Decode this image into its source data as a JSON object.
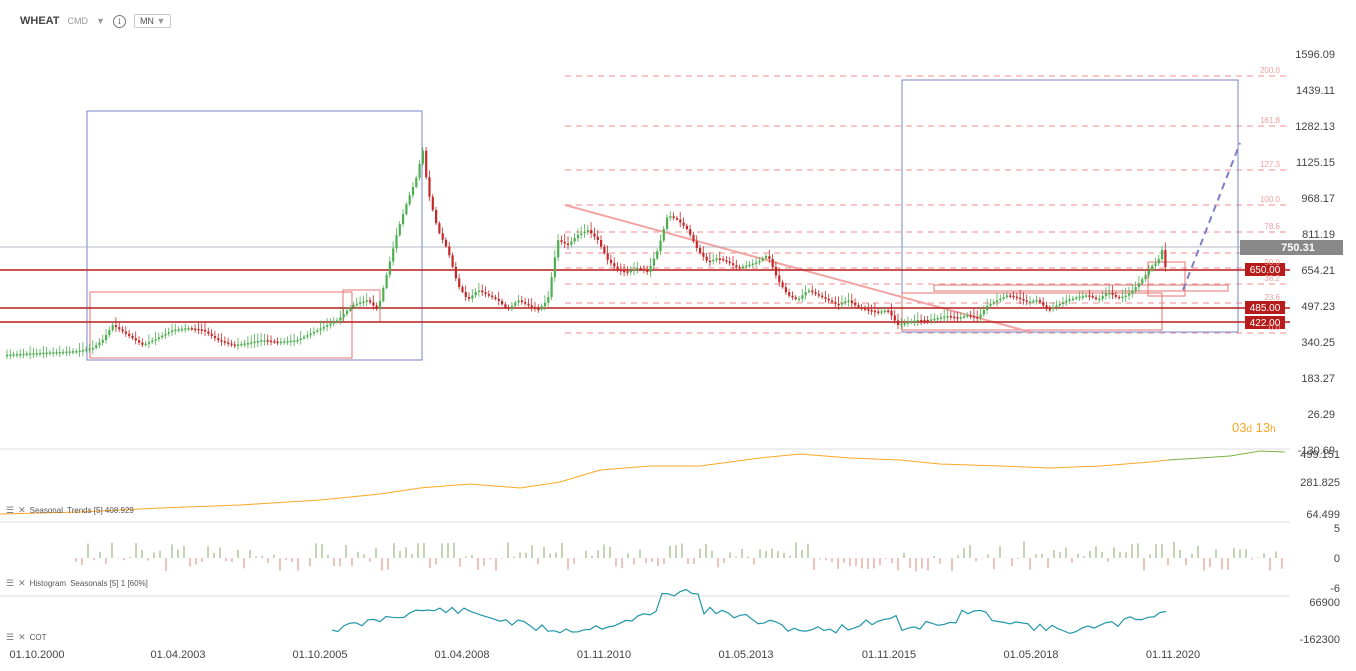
{
  "header": {
    "symbol": "WHEAT",
    "exchange": "CMD",
    "timeframe": "MN"
  },
  "main_axis": {
    "ticks": [
      "1596.09",
      "1439.11",
      "1282.13",
      "1125.15",
      "968.17",
      "811.19",
      "654.21",
      "497.23",
      "340.25",
      "183.27",
      "26.29",
      "-130.69"
    ],
    "current_price": "750.31"
  },
  "levels": [
    {
      "label": "650.00",
      "color": "#b71c1c"
    },
    {
      "label": "485.00",
      "color": "#b71c1c"
    },
    {
      "label": "422.00",
      "color": "#b71c1c"
    }
  ],
  "fib_labels": [
    "200.0",
    "161.8",
    "127.3",
    "100.0",
    "78.6",
    "61.8",
    "50.0",
    "38.2",
    "23.6",
    "0.0"
  ],
  "countdown": {
    "days": "03",
    "d": "d",
    "hours": "13",
    "h": "h"
  },
  "panels": [
    {
      "name": "Seasonal",
      "label": "Trends [5] 408.929",
      "ticks": [
        "499.151",
        "281.825",
        "64.499"
      ]
    },
    {
      "name": "Histogram",
      "label": "Seasonals [5] 1 [60%]",
      "ticks": [
        "5",
        "0",
        "-6"
      ]
    },
    {
      "name": "COT",
      "label": "",
      "ticks": [
        "66900",
        "-162300"
      ]
    }
  ],
  "x_axis": [
    "01.10.2000",
    "01.04.2003",
    "01.10.2005",
    "01.04.2008",
    "01.11.2010",
    "01.05.2013",
    "01.11.2015",
    "01.05.2018",
    "01.11.2020"
  ],
  "colors": {
    "up": "#4caf50",
    "down": "#c62828",
    "level": "#b71c1c",
    "fib": "#f4a3a3",
    "box": "#7986cb",
    "trend": "#ffa726",
    "cot": "#2196a8"
  }
}
